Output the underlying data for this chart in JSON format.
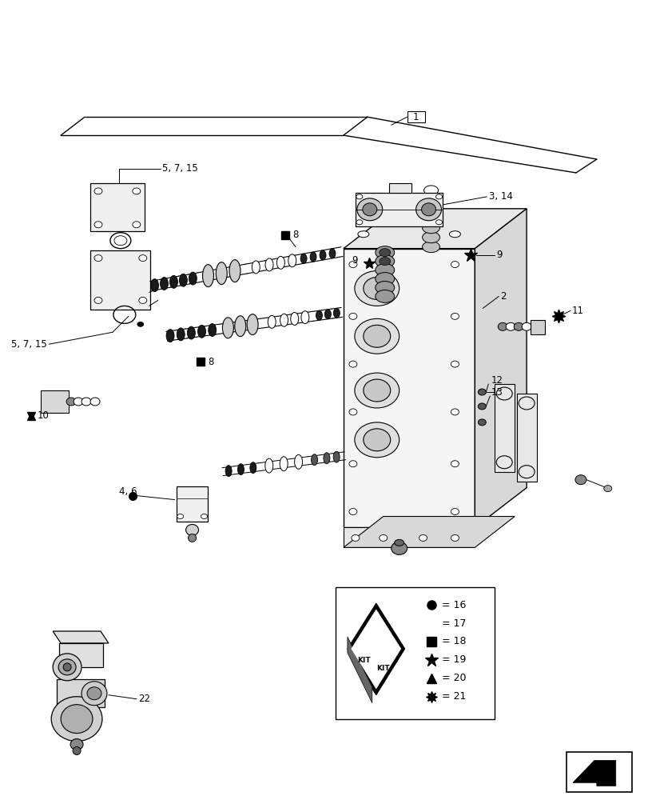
{
  "background_color": "#ffffff",
  "line_color": "#000000",
  "figure_width": 8.12,
  "figure_height": 10.0
}
